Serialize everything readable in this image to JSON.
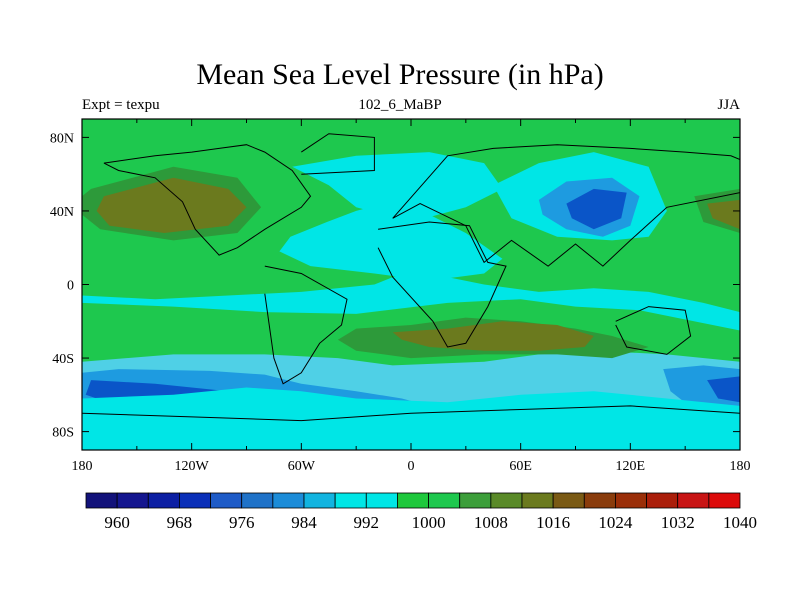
{
  "chart_data": {
    "type": "heatmap",
    "title": "Mean Sea Level Pressure (in hPa)",
    "left_label": "Expt = texpu",
    "center_label": "102_6_MaBP",
    "right_label": "JJA",
    "x_ticks": [
      "180",
      "120W",
      "60W",
      "0",
      "60E",
      "120E",
      "180"
    ],
    "y_ticks": [
      "80N",
      "40N",
      "0",
      "40S",
      "80S"
    ],
    "x_range": [
      -180,
      180
    ],
    "y_range": [
      -90,
      90
    ],
    "colorbar": {
      "colors": [
        "#12127a",
        "#14168f",
        "#0c1fa3",
        "#0a2fb8",
        "#1e5bc7",
        "#1f72c8",
        "#1c8cd8",
        "#12b4e0",
        "#00e6e6",
        "#00e6e6",
        "#1ec83c",
        "#1ec84e",
        "#3c9e3a",
        "#5a8a28",
        "#6b7a1e",
        "#7a5a14",
        "#8a3c0c",
        "#9a2e08",
        "#aa1e0a",
        "#c81414",
        "#dc0a0a"
      ],
      "labels": [
        "960",
        "968",
        "976",
        "984",
        "992",
        "1000",
        "1008",
        "1016",
        "1024",
        "1032",
        "1040"
      ]
    },
    "regions": [
      {
        "fill": "#1ec84e",
        "lon": [
          -180,
          180,
          180,
          -180
        ],
        "lat": [
          90,
          90,
          -90,
          -90
        ]
      },
      {
        "fill": "#4fd0e6",
        "lon": [
          -180,
          -130,
          -80,
          -40,
          -10,
          40,
          70,
          100,
          140,
          180,
          180,
          -180
        ],
        "lat": [
          -42,
          -38,
          -38,
          -40,
          -44,
          -42,
          -38,
          -36,
          -38,
          -42,
          -90,
          -90
        ]
      },
      {
        "fill": "#1e9be0",
        "lon": [
          -180,
          -160,
          -110,
          -80,
          -60,
          -30,
          -5,
          10,
          -20,
          -60,
          -100,
          -150,
          -180
        ],
        "lat": [
          -48,
          -46,
          -47,
          -49,
          -54,
          -58,
          -62,
          -66,
          -72,
          -76,
          -78,
          -74,
          -70
        ]
      },
      {
        "fill": "#0a55c8",
        "lon": [
          -175,
          -140,
          -100,
          -78,
          -85,
          -120,
          -160,
          -178
        ],
        "lat": [
          -52,
          -54,
          -58,
          -62,
          -68,
          -70,
          -66,
          -60
        ]
      },
      {
        "fill": "#1e9be0",
        "lon": [
          138,
          160,
          180,
          180,
          160,
          142
        ],
        "lat": [
          -46,
          -44,
          -46,
          -72,
          -72,
          -58
        ]
      },
      {
        "fill": "#0a55c8",
        "lon": [
          162,
          180,
          180,
          168
        ],
        "lat": [
          -52,
          -50,
          -64,
          -62
        ]
      },
      {
        "fill": "#00e6e6",
        "lon": [
          -180,
          -130,
          -90,
          -60,
          -30,
          20,
          60,
          100,
          140,
          180,
          180,
          -180
        ],
        "lat": [
          -62,
          -60,
          -56,
          -58,
          -62,
          -64,
          -60,
          -58,
          -62,
          -66,
          -90,
          -90
        ]
      },
      {
        "fill": "#00e6e6",
        "lon": [
          -180,
          -130,
          -80,
          -30,
          20,
          60,
          90,
          125,
          145,
          165,
          180,
          180,
          160,
          130,
          100,
          70,
          40,
          20,
          0,
          -20,
          -60,
          -100,
          -140,
          -180
        ],
        "lat": [
          -10,
          -12,
          -15,
          -16,
          -10,
          -8,
          -12,
          -14,
          -18,
          -22,
          -25,
          -15,
          -10,
          -4,
          -2,
          -4,
          0,
          4,
          8,
          0,
          -4,
          -6,
          -8,
          -6
        ]
      },
      {
        "fill": "#00e6e6",
        "lon": [
          -65,
          -30,
          10,
          40,
          50,
          30,
          0,
          -30,
          -45
        ],
        "lat": [
          64,
          70,
          72,
          66,
          52,
          42,
          34,
          42,
          54
        ]
      },
      {
        "fill": "#00e6e6",
        "lon": [
          -66,
          -46,
          -30,
          -15,
          10,
          30,
          50,
          40,
          10,
          -20,
          -55,
          -72
        ],
        "lat": [
          26,
          34,
          40,
          44,
          38,
          28,
          14,
          6,
          2,
          6,
          10,
          18
        ]
      },
      {
        "fill": "#00e6e6",
        "lon": [
          45,
          70,
          100,
          130,
          140,
          130,
          110,
          80,
          55
        ],
        "lat": [
          54,
          66,
          72,
          64,
          40,
          26,
          24,
          26,
          36
        ]
      },
      {
        "fill": "#1e9be0",
        "lon": [
          70,
          85,
          110,
          125,
          120,
          105,
          85,
          72
        ],
        "lat": [
          46,
          56,
          58,
          48,
          32,
          26,
          30,
          38
        ]
      },
      {
        "fill": "#0a55c8",
        "lon": [
          85,
          100,
          118,
          115,
          100,
          88
        ],
        "lat": [
          44,
          52,
          50,
          36,
          30,
          36
        ]
      },
      {
        "fill": "#2d9a3a",
        "lon": [
          -175,
          -130,
          -95,
          -82,
          -95,
          -130,
          -170,
          -180,
          -180
        ],
        "lat": [
          52,
          64,
          58,
          42,
          28,
          24,
          30,
          38,
          48
        ]
      },
      {
        "fill": "#6b7a1e",
        "lon": [
          -168,
          -130,
          -100,
          -90,
          -100,
          -135,
          -165,
          -172
        ],
        "lat": [
          48,
          58,
          52,
          42,
          32,
          28,
          32,
          40
        ]
      },
      {
        "fill": "#2d9a3a",
        "lon": [
          -30,
          0,
          30,
          60,
          90,
          110,
          130,
          110,
          80,
          40,
          0,
          -30,
          -40
        ],
        "lat": [
          -24,
          -22,
          -18,
          -20,
          -24,
          -28,
          -34,
          -40,
          -38,
          -38,
          -40,
          -36,
          -30
        ]
      },
      {
        "fill": "#6b7a1e",
        "lon": [
          -10,
          20,
          50,
          80,
          100,
          95,
          70,
          40,
          10,
          -5
        ],
        "lat": [
          -26,
          -24,
          -20,
          -22,
          -28,
          -34,
          -36,
          -36,
          -34,
          -30
        ]
      },
      {
        "fill": "#2d9a3a",
        "lon": [
          155,
          180,
          180,
          160
        ],
        "lat": [
          48,
          52,
          28,
          34
        ]
      },
      {
        "fill": "#6b7a1e",
        "lon": [
          162,
          180,
          180,
          165
        ],
        "lat": [
          44,
          46,
          30,
          36
        ]
      }
    ],
    "coast_outlines": [
      {
        "lon": [
          -168,
          -140,
          -120,
          -105,
          -90,
          -80,
          -65,
          -55,
          -60,
          -80,
          -95,
          -105,
          -118,
          -125,
          -140,
          -160,
          -168
        ],
        "lat": [
          66,
          70,
          72,
          74,
          76,
          72,
          62,
          48,
          42,
          30,
          20,
          16,
          30,
          45,
          58,
          62,
          66
        ]
      },
      {
        "lon": [
          -80,
          -60,
          -35,
          -38,
          -50,
          -60,
          -70,
          -75,
          -80
        ],
        "lat": [
          10,
          6,
          -8,
          -22,
          -32,
          -48,
          -54,
          -40,
          -5
        ]
      },
      {
        "lon": [
          -18,
          10,
          32,
          42,
          52,
          42,
          30,
          20,
          12,
          -10,
          -18
        ],
        "lat": [
          30,
          34,
          32,
          12,
          10,
          -12,
          -32,
          -34,
          -20,
          4,
          20
        ]
      },
      {
        "lon": [
          -10,
          20,
          45,
          80,
          120,
          150,
          175,
          180,
          180,
          140,
          120,
          105,
          90,
          75,
          55,
          40,
          30,
          5,
          -10
        ],
        "lat": [
          36,
          70,
          74,
          76,
          74,
          72,
          70,
          68,
          50,
          42,
          24,
          10,
          22,
          10,
          24,
          12,
          32,
          44,
          36
        ]
      },
      {
        "lon": [
          112,
          130,
          150,
          153,
          140,
          118,
          112
        ],
        "lat": [
          -20,
          -12,
          -14,
          -28,
          -38,
          -34,
          -22
        ]
      },
      {
        "lon": [
          -60,
          -20,
          -20,
          -45,
          -60
        ],
        "lat": [
          60,
          62,
          80,
          82,
          72
        ]
      },
      {
        "lon": [
          -180,
          -120,
          -60,
          0,
          60,
          120,
          180
        ],
        "lat": [
          -70,
          -72,
          -74,
          -70,
          -68,
          -66,
          -70
        ]
      }
    ]
  }
}
